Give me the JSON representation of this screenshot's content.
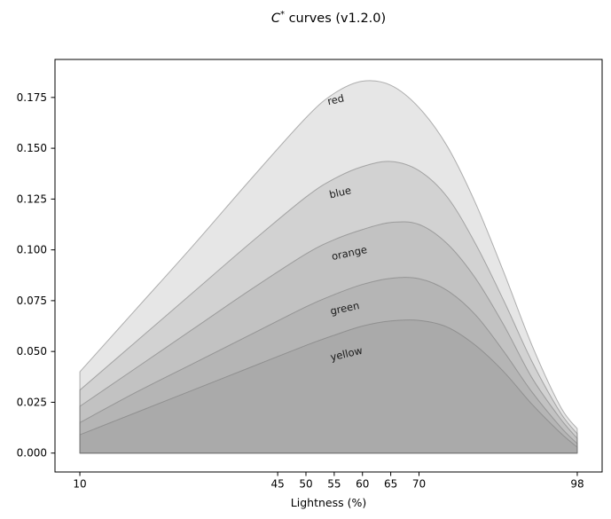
{
  "title": {
    "variable": "C",
    "superscript": "*",
    "rest": " curves (v1.2.0)",
    "full_text": "C* curves (v1.2.0)"
  },
  "chart_data": {
    "type": "area",
    "title": "C* curves (v1.2.0)",
    "xlabel": "Lightness (%)",
    "ylabel": "",
    "grid": false,
    "legend": "inline-labels",
    "xlim": [
      5.6,
      102.4
    ],
    "ylim": [
      -0.0093,
      0.1937
    ],
    "x_ticks": [
      10,
      45,
      50,
      55,
      60,
      65,
      70,
      98
    ],
    "y_ticks": [
      {
        "value": 0.0,
        "label": "0.000"
      },
      {
        "value": 0.025,
        "label": "0.025"
      },
      {
        "value": 0.05,
        "label": "0.050"
      },
      {
        "value": 0.075,
        "label": "0.075"
      },
      {
        "value": 0.1,
        "label": "0.100"
      },
      {
        "value": 0.125,
        "label": "0.125"
      },
      {
        "value": 0.15,
        "label": "0.150"
      },
      {
        "value": 0.175,
        "label": "0.175"
      }
    ],
    "x": [
      10,
      20,
      30,
      40,
      50,
      55,
      60,
      65,
      70,
      75,
      80,
      85,
      90,
      95,
      98
    ],
    "series": [
      {
        "name": "red",
        "values": [
          0.04,
          0.071,
          0.102,
          0.134,
          0.165,
          0.177,
          0.183,
          0.181,
          0.17,
          0.151,
          0.123,
          0.089,
          0.053,
          0.023,
          0.012
        ],
        "peak": {
          "x": 58,
          "y": 0.184
        },
        "label": {
          "text": "red",
          "x": 55.4,
          "y": 0.1722,
          "rotation": -13
        }
      },
      {
        "name": "blue",
        "values": [
          0.031,
          0.055,
          0.079,
          0.103,
          0.126,
          0.135,
          0.141,
          0.1435,
          0.139,
          0.126,
          0.103,
          0.075,
          0.045,
          0.02,
          0.0095
        ],
        "peak": {
          "x": 64,
          "y": 0.1435
        },
        "label": {
          "text": "blue",
          "x": 56.2,
          "y": 0.1266,
          "rotation": -13
        }
      },
      {
        "name": "orange",
        "values": [
          0.023,
          0.042,
          0.061,
          0.08,
          0.098,
          0.105,
          0.11,
          0.1135,
          0.1125,
          0.103,
          0.086,
          0.063,
          0.037,
          0.017,
          0.0072
        ],
        "peak": {
          "x": 66,
          "y": 0.1138
        },
        "label": {
          "text": "orange",
          "x": 57.8,
          "y": 0.0968,
          "rotation": -12
        }
      },
      {
        "name": "green",
        "values": [
          0.015,
          0.03,
          0.044,
          0.058,
          0.072,
          0.078,
          0.083,
          0.086,
          0.0858,
          0.08,
          0.068,
          0.05,
          0.03,
          0.013,
          0.0046
        ],
        "peak": {
          "x": 67,
          "y": 0.0862
        },
        "label": {
          "text": "green",
          "x": 57.0,
          "y": 0.0696,
          "rotation": -12
        }
      },
      {
        "name": "yellow",
        "values": [
          0.009,
          0.02,
          0.031,
          0.042,
          0.053,
          0.058,
          0.0625,
          0.065,
          0.0653,
          0.062,
          0.053,
          0.04,
          0.024,
          0.01,
          0.0029
        ],
        "peak": {
          "x": 67,
          "y": 0.0655
        },
        "label": {
          "text": "yellow",
          "x": 57.3,
          "y": 0.0472,
          "rotation": -13
        }
      }
    ],
    "style": {
      "fill_color": "rgba(130,130,130,0.2)",
      "edge_color": "rgba(118,118,118,0.55)",
      "spine_color": "#000000",
      "tick_color": "#000000",
      "text_color": "#000000",
      "label_color": "#1a1a1a",
      "background": "#ffffff"
    }
  }
}
